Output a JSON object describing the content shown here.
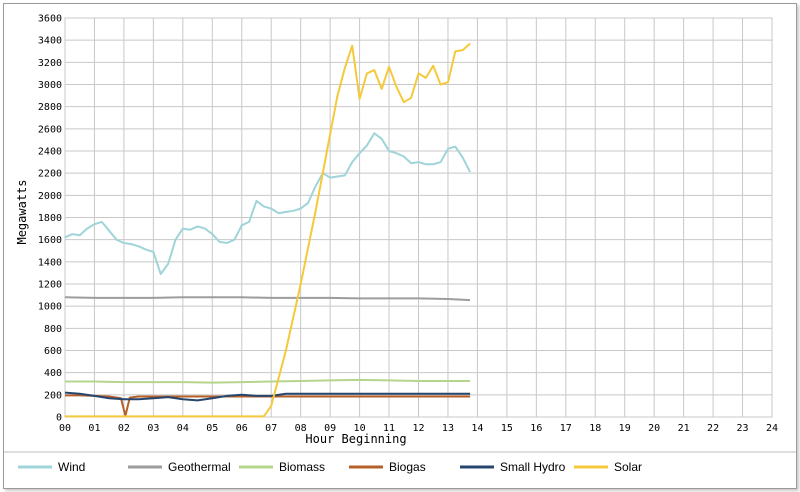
{
  "chart_data": {
    "type": "line",
    "title": "",
    "xlabel": "Hour Beginning",
    "ylabel": "Megawatts",
    "xlim": [
      0,
      24
    ],
    "ylim": [
      0,
      3600
    ],
    "grid": true,
    "legend_position": "bottom",
    "x_ticks": [
      "00",
      "01",
      "02",
      "03",
      "04",
      "05",
      "06",
      "07",
      "08",
      "09",
      "10",
      "11",
      "12",
      "13",
      "14",
      "15",
      "16",
      "17",
      "18",
      "19",
      "20",
      "21",
      "22",
      "23",
      "24"
    ],
    "y_ticks": [
      0,
      200,
      400,
      600,
      800,
      1000,
      1200,
      1400,
      1600,
      1800,
      2000,
      2200,
      2400,
      2600,
      2800,
      3000,
      3200,
      3400,
      3600
    ],
    "series": [
      {
        "name": "Wind",
        "color": "#9fd4d9",
        "x": [
          0,
          0.25,
          0.5,
          0.75,
          1,
          1.25,
          1.5,
          1.75,
          2,
          2.25,
          2.5,
          2.75,
          3,
          3.25,
          3.5,
          3.75,
          4,
          4.25,
          4.5,
          4.75,
          5,
          5.25,
          5.5,
          5.75,
          6,
          6.25,
          6.5,
          6.75,
          7,
          7.25,
          7.5,
          7.75,
          8,
          8.25,
          8.5,
          8.75,
          9,
          9.25,
          9.5,
          9.75,
          10,
          10.25,
          10.5,
          10.75,
          11,
          11.25,
          11.5,
          11.75,
          12,
          12.25,
          12.5,
          12.75,
          13,
          13.25,
          13.5,
          13.75
        ],
        "y": [
          1620,
          1650,
          1640,
          1700,
          1740,
          1760,
          1680,
          1600,
          1570,
          1560,
          1540,
          1510,
          1490,
          1290,
          1380,
          1600,
          1700,
          1690,
          1720,
          1700,
          1650,
          1580,
          1570,
          1600,
          1730,
          1760,
          1950,
          1900,
          1880,
          1840,
          1850,
          1860,
          1880,
          1930,
          2080,
          2200,
          2160,
          2170,
          2180,
          2300,
          2380,
          2450,
          2560,
          2510,
          2400,
          2380,
          2350,
          2290,
          2300,
          2280,
          2280,
          2300,
          2420,
          2440,
          2340,
          2210
        ]
      },
      {
        "name": "Geothermal",
        "color": "#9d9d9d",
        "x": [
          0,
          1,
          2,
          3,
          4,
          5,
          6,
          7,
          8,
          9,
          10,
          11,
          12,
          13,
          13.75
        ],
        "y": [
          1080,
          1075,
          1075,
          1075,
          1080,
          1080,
          1080,
          1075,
          1075,
          1075,
          1070,
          1070,
          1070,
          1065,
          1055
        ]
      },
      {
        "name": "Biomass",
        "color": "#b5d48c",
        "x": [
          0,
          1,
          2,
          3,
          4,
          5,
          6,
          7,
          8,
          9,
          10,
          11,
          12,
          13,
          13.75
        ],
        "y": [
          320,
          320,
          315,
          315,
          315,
          310,
          315,
          320,
          325,
          330,
          335,
          330,
          325,
          325,
          325
        ]
      },
      {
        "name": "Biogas",
        "color": "#b5602a",
        "x": [
          0,
          0.5,
          1,
          1.5,
          1.9,
          2.05,
          2.2,
          2.5,
          3,
          4,
          5,
          6,
          7,
          8,
          9,
          10,
          11,
          12,
          13,
          13.75
        ],
        "y": [
          195,
          195,
          190,
          185,
          170,
          10,
          175,
          185,
          185,
          185,
          185,
          185,
          185,
          185,
          185,
          185,
          185,
          185,
          185,
          185
        ]
      },
      {
        "name": "Small Hydro",
        "color": "#27466e",
        "x": [
          0,
          0.5,
          1,
          1.5,
          2,
          2.5,
          3,
          3.5,
          4,
          4.5,
          5,
          5.5,
          6,
          6.5,
          7,
          7.5,
          8,
          9,
          10,
          11,
          12,
          13,
          13.75
        ],
        "y": [
          220,
          210,
          190,
          170,
          160,
          160,
          170,
          180,
          160,
          150,
          170,
          190,
          200,
          190,
          190,
          210,
          210,
          210,
          210,
          210,
          210,
          210,
          210
        ]
      },
      {
        "name": "Solar",
        "color": "#f5c93c",
        "x": [
          0,
          1,
          2,
          3,
          4,
          5,
          6,
          6.75,
          7,
          7.5,
          8,
          8.5,
          9,
          9.25,
          9.5,
          9.75,
          10,
          10.25,
          10.5,
          10.75,
          11,
          11.25,
          11.5,
          11.75,
          12,
          12.25,
          12.5,
          12.75,
          13,
          13.25,
          13.5,
          13.75
        ],
        "y": [
          5,
          5,
          5,
          5,
          5,
          5,
          5,
          5,
          100,
          600,
          1200,
          1850,
          2550,
          2900,
          3150,
          3350,
          2870,
          3100,
          3130,
          2960,
          3160,
          2980,
          2840,
          2880,
          3100,
          3060,
          3170,
          3000,
          3020,
          3300,
          3310,
          3370
        ]
      }
    ]
  }
}
